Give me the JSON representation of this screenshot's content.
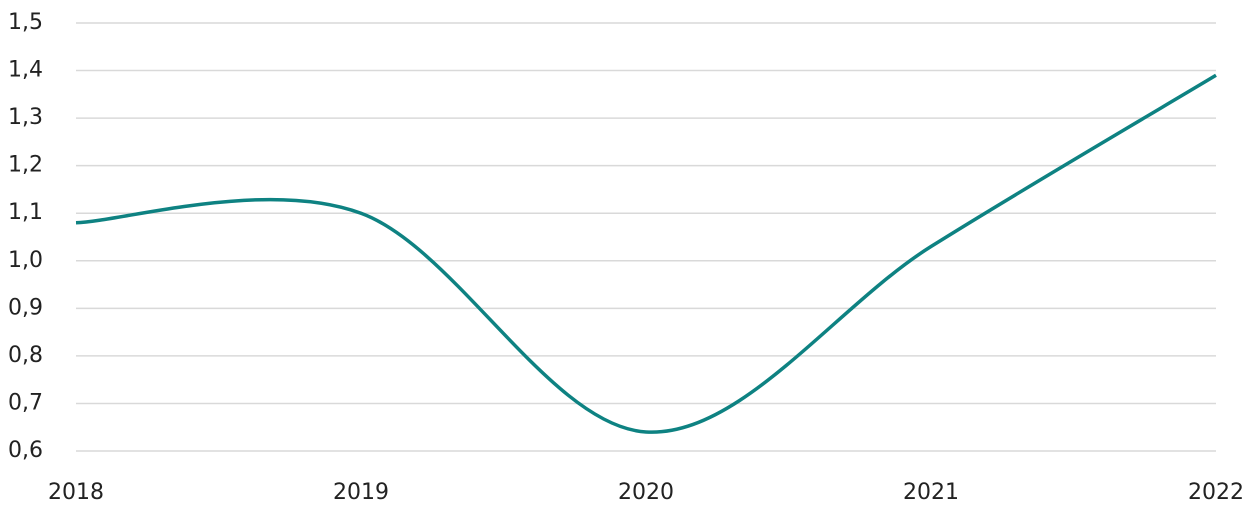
{
  "chart_data": {
    "type": "line",
    "x": [
      2018,
      2019,
      2020,
      2021,
      2022
    ],
    "values": [
      1.08,
      1.1,
      0.64,
      1.03,
      1.39
    ],
    "color": "#0e8282",
    "smooth": true,
    "grid": true,
    "xlim": [
      2018,
      2022
    ],
    "xticks": [
      2018,
      2019,
      2020,
      2021,
      2022
    ],
    "ylim": [
      0.6,
      1.5
    ],
    "yticks": [
      {
        "value": 0.6,
        "label": "0,6"
      },
      {
        "value": 0.7,
        "label": "0,7"
      },
      {
        "value": 0.8,
        "label": "0,8"
      },
      {
        "value": 0.9,
        "label": "0,9"
      },
      {
        "value": 1.0,
        "label": "1,0"
      },
      {
        "value": 1.1,
        "label": "1,1"
      },
      {
        "value": 1.2,
        "label": "1,2"
      },
      {
        "value": 1.3,
        "label": "1,3"
      },
      {
        "value": 1.4,
        "label": "1,4"
      },
      {
        "value": 1.5,
        "label": "1,5"
      }
    ]
  }
}
